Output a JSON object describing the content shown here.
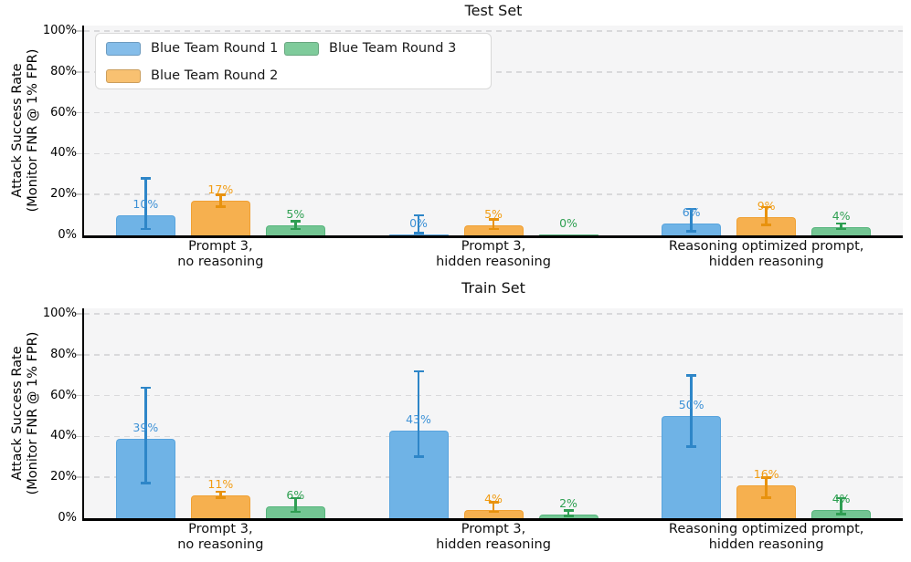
{
  "palette": {
    "series": [
      {
        "key": "blue-team-round-1",
        "fill": "#6fb3e6",
        "legend_fill": "#85bde9",
        "edge": "#58a4de",
        "err": "#2e86c8",
        "text": "#3d91d6"
      },
      {
        "key": "blue-team-round-2",
        "fill": "#f6b04f",
        "legend_fill": "#f8c171",
        "edge": "#f0a033",
        "err": "#e8920e",
        "text": "#f29c12"
      },
      {
        "key": "blue-team-round-3",
        "fill": "#73c593",
        "legend_fill": "#7fcb9b",
        "edge": "#57b57d",
        "err": "#2f9e53",
        "text": "#2fa052"
      }
    ],
    "plot_bg": "#f5f5f6",
    "grid": "#d9d9db",
    "spine": "#000000",
    "tick": "#c9c9c9",
    "legend_border": "#d8d8d8"
  },
  "chart_data": [
    {
      "type": "bar",
      "title": "Test Set",
      "ylabel": [
        "Attack Success Rate",
        "(Monitor FNR @ 1% FPR)"
      ],
      "ylim": [
        0,
        101
      ],
      "grid": true,
      "yticks": [
        {
          "label": "0%",
          "value": 0
        },
        {
          "label": "20%",
          "value": 20
        },
        {
          "label": "40%",
          "value": 40
        },
        {
          "label": "60%",
          "value": 60
        },
        {
          "label": "80%",
          "value": 80
        },
        {
          "label": "100%",
          "value": 100
        }
      ],
      "categories": [
        [
          "Prompt 3,",
          "no reasoning"
        ],
        [
          "Prompt 3,",
          "hidden reasoning"
        ],
        [
          "Reasoning optimized prompt,",
          "hidden reasoning"
        ]
      ],
      "legend": {
        "show": true,
        "position": "upper left",
        "labels": [
          "Blue Team Round 1",
          "Blue Team Round 2",
          "Blue Team Round 3"
        ]
      },
      "series": [
        {
          "name": "Blue Team Round 1",
          "values": [
            10,
            0,
            6
          ],
          "labels": [
            "10%",
            "0%",
            "6%"
          ],
          "err_low": [
            3,
            1,
            2
          ],
          "err_high": [
            28,
            10,
            13
          ]
        },
        {
          "name": "Blue Team Round 2",
          "values": [
            17,
            5,
            9
          ],
          "labels": [
            "17%",
            "5%",
            "9%"
          ],
          "err_low": [
            14,
            3,
            5
          ],
          "err_high": [
            20,
            8,
            14
          ]
        },
        {
          "name": "Blue Team Round 3",
          "values": [
            5,
            0,
            4
          ],
          "labels": [
            "5%",
            "0%",
            "4%"
          ],
          "err_low": [
            3,
            0,
            3
          ],
          "err_high": [
            7,
            0.5,
            6
          ]
        }
      ]
    },
    {
      "type": "bar",
      "title": "Train Set",
      "ylabel": [
        "Attack Success Rate",
        "(Monitor FNR @ 1% FPR)"
      ],
      "ylim": [
        0,
        101
      ],
      "grid": true,
      "yticks": [
        {
          "label": "0%",
          "value": 0
        },
        {
          "label": "20%",
          "value": 20
        },
        {
          "label": "40%",
          "value": 40
        },
        {
          "label": "60%",
          "value": 60
        },
        {
          "label": "80%",
          "value": 80
        },
        {
          "label": "100%",
          "value": 100
        }
      ],
      "categories": [
        [
          "Prompt 3,",
          "no reasoning"
        ],
        [
          "Prompt 3,",
          "hidden reasoning"
        ],
        [
          "Reasoning optimized prompt,",
          "hidden reasoning"
        ]
      ],
      "legend": {
        "show": false
      },
      "series": [
        {
          "name": "Blue Team Round 1",
          "values": [
            39,
            43,
            50
          ],
          "labels": [
            "39%",
            "43%",
            "50%"
          ],
          "err_low": [
            17,
            30,
            35
          ],
          "err_high": [
            64,
            72,
            70
          ]
        },
        {
          "name": "Blue Team Round 2",
          "values": [
            11,
            4,
            16
          ],
          "labels": [
            "11%",
            "4%",
            "16%"
          ],
          "err_low": [
            10,
            3,
            10
          ],
          "err_high": [
            13,
            8,
            20
          ]
        },
        {
          "name": "Blue Team Round 3",
          "values": [
            6,
            2,
            4
          ],
          "labels": [
            "6%",
            "2%",
            "4%"
          ],
          "err_low": [
            3,
            1,
            2
          ],
          "err_high": [
            10,
            4,
            10
          ]
        }
      ]
    }
  ]
}
